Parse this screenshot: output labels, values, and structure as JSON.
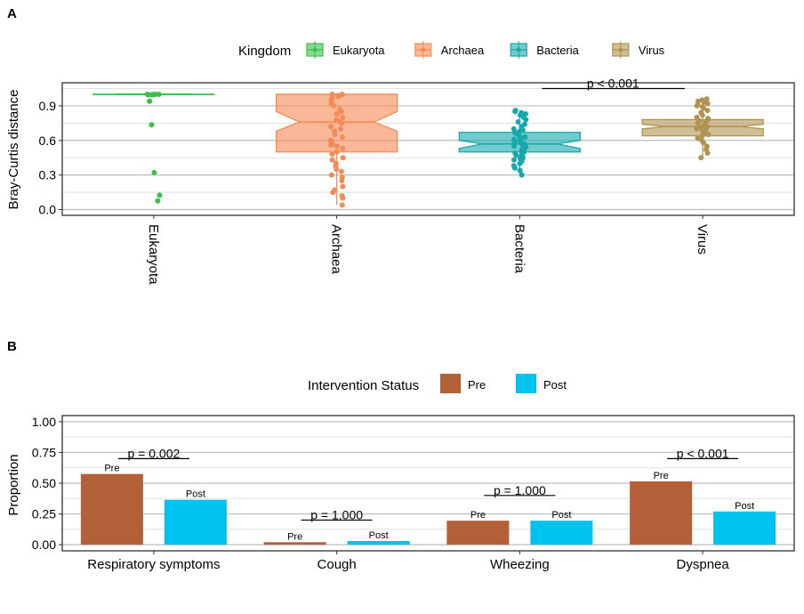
{
  "panel_a": {
    "tag": "A",
    "chart_data": {
      "type": "boxplot",
      "ylabel": "Bray-Curtis distance",
      "ylim": [
        -0.05,
        1.1
      ],
      "yticks": [
        0.0,
        0.3,
        0.6,
        0.9
      ],
      "grid": true,
      "legend": {
        "title": "Kingdom",
        "position": "top",
        "entries": [
          "Eukaryota",
          "Archaea",
          "Bacteria",
          "Virus"
        ]
      },
      "colors": {
        "Eukaryota": "#3bbf4a",
        "Archaea": "#f58a55",
        "Bacteria": "#16a9ab",
        "Virus": "#b09350"
      },
      "categories": [
        "Eukaryota",
        "Archaea",
        "Bacteria",
        "Virus"
      ],
      "boxes": [
        {
          "name": "Eukaryota",
          "q1": 0.997,
          "median": 1.0,
          "q3": 1.0,
          "whisker_low": 0.995,
          "whisker_high": 1.0,
          "notch_low": 0.999,
          "notch_high": 1.0,
          "points": [
            1.0,
            1.0,
            0.995,
            0.998,
            0.997,
            0.999,
            1.0,
            0.94,
            0.735,
            0.32,
            0.125,
            0.075
          ]
        },
        {
          "name": "Archaea",
          "q1": 0.5,
          "median": 0.76,
          "q3": 1.0,
          "whisker_low": 0.04,
          "whisker_high": 1.0,
          "notch_low": 0.68,
          "notch_high": 0.85,
          "points": [
            1.0,
            1.0,
            0.99,
            0.98,
            0.97,
            0.95,
            0.92,
            0.9,
            0.87,
            0.85,
            0.83,
            0.8,
            0.78,
            0.76,
            0.75,
            0.72,
            0.7,
            0.68,
            0.65,
            0.63,
            0.6,
            0.58,
            0.56,
            0.55,
            0.53,
            0.5,
            0.48,
            0.45,
            0.43,
            0.4,
            0.38,
            0.35,
            0.33,
            0.3,
            0.28,
            0.25,
            0.2,
            0.17,
            0.15,
            0.12,
            0.1,
            0.04
          ]
        },
        {
          "name": "Bacteria",
          "q1": 0.5,
          "median": 0.57,
          "q3": 0.67,
          "whisker_low": 0.3,
          "whisker_high": 0.86,
          "notch_low": 0.53,
          "notch_high": 0.6,
          "points": [
            0.86,
            0.85,
            0.84,
            0.83,
            0.82,
            0.8,
            0.78,
            0.76,
            0.74,
            0.72,
            0.7,
            0.69,
            0.68,
            0.67,
            0.66,
            0.65,
            0.64,
            0.63,
            0.62,
            0.61,
            0.6,
            0.59,
            0.58,
            0.57,
            0.56,
            0.55,
            0.54,
            0.53,
            0.52,
            0.51,
            0.5,
            0.49,
            0.48,
            0.47,
            0.46,
            0.45,
            0.44,
            0.43,
            0.42,
            0.4,
            0.38,
            0.36,
            0.34,
            0.3
          ]
        },
        {
          "name": "Virus",
          "q1": 0.64,
          "median": 0.72,
          "q3": 0.78,
          "whisker_low": 0.45,
          "whisker_high": 0.96,
          "notch_low": 0.7,
          "notch_high": 0.74,
          "points": [
            0.96,
            0.95,
            0.94,
            0.93,
            0.92,
            0.91,
            0.9,
            0.89,
            0.88,
            0.86,
            0.84,
            0.82,
            0.8,
            0.79,
            0.78,
            0.77,
            0.76,
            0.75,
            0.74,
            0.73,
            0.72,
            0.71,
            0.7,
            0.69,
            0.68,
            0.67,
            0.66,
            0.65,
            0.64,
            0.62,
            0.6,
            0.58,
            0.55,
            0.52,
            0.49,
            0.45
          ]
        }
      ],
      "annotations": [
        {
          "text": "p < 0.001",
          "from": "Bacteria",
          "to": "Virus",
          "y": 1.05
        }
      ]
    }
  },
  "panel_b": {
    "tag": "B",
    "chart_data": {
      "type": "bar",
      "ylabel": "Proportion",
      "ylim": [
        -0.05,
        1.05
      ],
      "yticks": [
        0.0,
        0.25,
        0.5,
        0.75,
        1.0
      ],
      "ytick_labels": [
        "0.00",
        "0.25",
        "0.50",
        "0.75",
        "1.00"
      ],
      "grid": true,
      "legend": {
        "title": "Intervention Status",
        "position": "top",
        "entries": [
          "Pre",
          "Post"
        ]
      },
      "colors": {
        "Pre": "#b35f38",
        "Post": "#00c2ef"
      },
      "categories": [
        "Respiratory symptoms",
        "Cough",
        "Wheezing",
        "Dyspnea"
      ],
      "series": [
        {
          "name": "Pre",
          "values": [
            0.575,
            0.02,
            0.195,
            0.515
          ]
        },
        {
          "name": "Post",
          "values": [
            0.365,
            0.03,
            0.195,
            0.27
          ]
        }
      ],
      "annotations": [
        {
          "category": "Respiratory symptoms",
          "text": "p = 0.002",
          "y": 0.7
        },
        {
          "category": "Cough",
          "text": "p = 1.000",
          "y": 0.2
        },
        {
          "category": "Wheezing",
          "text": "p = 1.000",
          "y": 0.4
        },
        {
          "category": "Dyspnea",
          "text": "p < 0.001",
          "y": 0.7
        }
      ]
    }
  }
}
